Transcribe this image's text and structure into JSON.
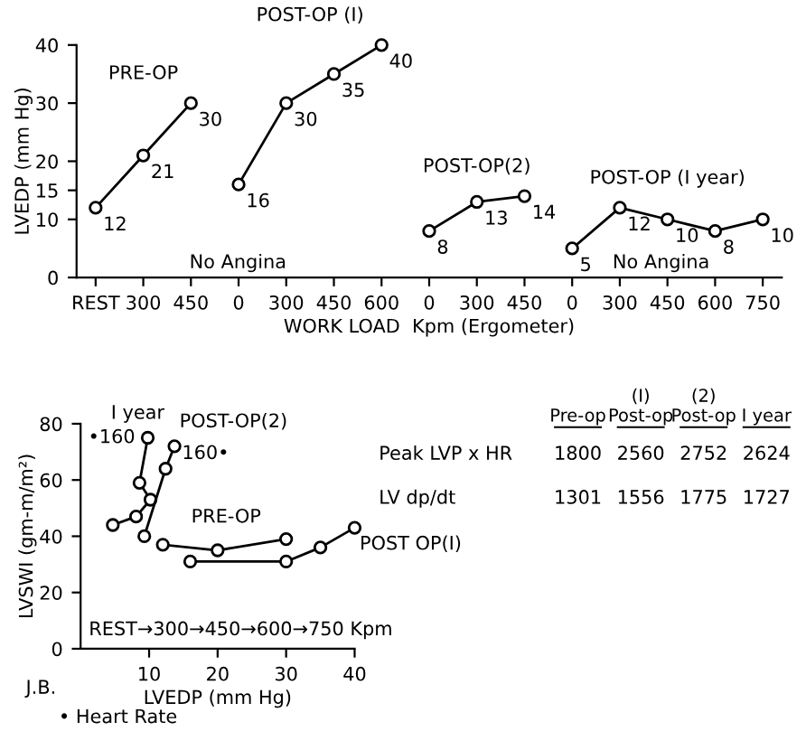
{
  "chart_data": [
    {
      "type": "line",
      "ylabel": "LVEDP (mm Hg)",
      "xlabel": "WORK LOAD  Kpm (Ergometer)",
      "categories": [
        "REST",
        "300",
        "450",
        "0",
        "300",
        "450",
        "600",
        "0",
        "300",
        "450",
        "0",
        "300",
        "450",
        "600",
        "750"
      ],
      "series": [
        {
          "name": "PRE-OP",
          "color": "#000000",
          "values": [
            12,
            21,
            30,
            null,
            null,
            null,
            null,
            null,
            null,
            null,
            null,
            null,
            null,
            null,
            null
          ]
        },
        {
          "name": "POST-OP (I)",
          "color": "#000000",
          "values": [
            null,
            null,
            null,
            16,
            30,
            35,
            40,
            null,
            null,
            null,
            null,
            null,
            null,
            null,
            null
          ]
        },
        {
          "name": "POST-OP(2)",
          "color": "#000000",
          "values": [
            null,
            null,
            null,
            null,
            null,
            null,
            null,
            8,
            13,
            14,
            null,
            null,
            null,
            null,
            null
          ]
        },
        {
          "name": "POST-OP (I year)",
          "color": "#000000",
          "values": [
            null,
            null,
            null,
            null,
            null,
            null,
            null,
            null,
            null,
            null,
            5,
            12,
            10,
            8,
            10
          ]
        }
      ],
      "ylim": [
        0,
        40
      ],
      "yticks": [
        0,
        10,
        15,
        20,
        30,
        40
      ],
      "data_labels": true,
      "marker": "circle",
      "grid": false,
      "legend": false,
      "annotations": [
        "No Angina",
        "No Angina"
      ]
    },
    {
      "type": "line",
      "xlabel": "LVEDP (mm Hg)",
      "ylabel": "LVSWI (gm-m/m²)",
      "series": [
        {
          "name": "I year",
          "color": "#000000",
          "x": [
            4.7,
            8.1,
            10.2,
            8.6,
            9.8
          ],
          "values": [
            44,
            47,
            53,
            59,
            75
          ]
        },
        {
          "name": "POST-OP(2)",
          "color": "#000000",
          "x": [
            9.3,
            12.4,
            13.7
          ],
          "values": [
            40,
            64,
            72
          ]
        },
        {
          "name": "PRE-OP",
          "color": "#000000",
          "x": [
            12,
            20,
            30
          ],
          "values": [
            37,
            35,
            39
          ]
        },
        {
          "name": "POST OP(I)",
          "color": "#000000",
          "x": [
            16,
            30,
            35,
            40
          ],
          "values": [
            31,
            31,
            36,
            43
          ]
        }
      ],
      "xlim": [
        0,
        40
      ],
      "xticks": [
        10,
        20,
        30,
        40
      ],
      "ylim": [
        0,
        80
      ],
      "yticks": [
        0,
        20,
        40,
        60,
        80
      ],
      "marker": "circle",
      "grid": false,
      "legend": false,
      "annotations": [
        {
          "text": "•160",
          "x": 9.8,
          "y": 75
        },
        {
          "text": "160•",
          "x": 13.7,
          "y": 72
        },
        "REST→300→450→600→750 Kpm",
        "J.B.",
        "• Heart Rate"
      ]
    },
    {
      "type": "other",
      "categories": [
        "Pre-op",
        "(I)\nPost-op",
        "(2)\nPost-op",
        "I year"
      ],
      "series": [
        {
          "name": "Peak LVP x HR",
          "values": [
            1800,
            2560,
            2752,
            2624
          ]
        },
        {
          "name": "LV dp/dt",
          "values": [
            1301,
            1556,
            1775,
            1727
          ]
        }
      ],
      "data_labels": true
    }
  ]
}
